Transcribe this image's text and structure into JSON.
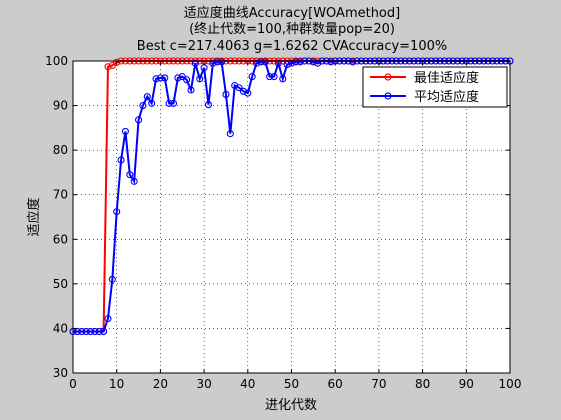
{
  "chart_data": {
    "type": "line",
    "title_lines": [
      "适应度曲线Accuracy[WOAmethod]",
      "(终止代数=100,种群数量pop=20)",
      "Best c=217.4063 g=1.6262 CVAccuracy=100%"
    ],
    "xlabel": "进化代数",
    "ylabel": "适应度",
    "xlim": [
      0,
      100
    ],
    "ylim": [
      30,
      100
    ],
    "xticks": [
      0,
      10,
      20,
      30,
      40,
      50,
      60,
      70,
      80,
      90,
      100
    ],
    "yticks": [
      30,
      40,
      50,
      60,
      70,
      80,
      90,
      100
    ],
    "grid": true,
    "legend_position": "top-right",
    "colors": {
      "best": "#ff0000",
      "avg": "#0000ff",
      "background": "#cccccc",
      "axes_bg": "#ffffff"
    },
    "x": [
      0,
      1,
      2,
      3,
      4,
      5,
      6,
      7,
      8,
      9,
      10,
      11,
      12,
      13,
      14,
      15,
      16,
      17,
      18,
      19,
      20,
      21,
      22,
      23,
      24,
      25,
      26,
      27,
      28,
      29,
      30,
      31,
      32,
      33,
      34,
      35,
      36,
      37,
      38,
      39,
      40,
      41,
      42,
      43,
      44,
      45,
      46,
      47,
      48,
      49,
      50,
      51,
      52,
      53,
      54,
      55,
      56,
      57,
      58,
      59,
      60,
      61,
      62,
      63,
      64,
      65,
      66,
      67,
      68,
      69,
      70,
      71,
      72,
      73,
      74,
      75,
      76,
      77,
      78,
      79,
      80,
      81,
      82,
      83,
      84,
      85,
      86,
      87,
      88,
      89,
      90,
      91,
      92,
      93,
      94,
      95,
      96,
      97,
      98,
      99,
      100
    ],
    "series": [
      {
        "name": "最佳适应度",
        "values": [
          39.3,
          39.3,
          39.3,
          39.3,
          39.3,
          39.3,
          39.3,
          39.3,
          98.7,
          99.0,
          99.7,
          100,
          100,
          100,
          100,
          100,
          100,
          100,
          100,
          100,
          100,
          100,
          100,
          100,
          100,
          100,
          100,
          100,
          100,
          100,
          100,
          100,
          100,
          100,
          100,
          100,
          100,
          100,
          100,
          100,
          100,
          100,
          100,
          100,
          100,
          100,
          100,
          100,
          100,
          100,
          100,
          100,
          100,
          100,
          100,
          100,
          100,
          100,
          100,
          100,
          100,
          100,
          100,
          100,
          100,
          100,
          100,
          100,
          100,
          100,
          100,
          100,
          100,
          100,
          100,
          100,
          100,
          100,
          100,
          100,
          100,
          100,
          100,
          100,
          100,
          100,
          100,
          100,
          100,
          100,
          100,
          100,
          100,
          100,
          100,
          100,
          100,
          100,
          100,
          100,
          100
        ]
      },
      {
        "name": "平均适应度",
        "values": [
          39.3,
          39.3,
          39.3,
          39.3,
          39.3,
          39.3,
          39.3,
          39.3,
          42.2,
          51.0,
          66.2,
          77.8,
          84.2,
          74.5,
          73.0,
          86.8,
          90.0,
          92.0,
          90.5,
          96.0,
          96.2,
          96.2,
          90.5,
          90.5,
          96.2,
          96.5,
          95.8,
          93.5,
          99.5,
          96.0,
          98.5,
          90.2,
          99.5,
          99.8,
          99.8,
          92.5,
          83.7,
          94.5,
          94.0,
          93.2,
          92.8,
          96.5,
          99.5,
          99.8,
          99.8,
          96.5,
          96.5,
          99.5,
          96.0,
          99.2,
          99.5,
          99.8,
          99.8,
          100,
          100,
          99.8,
          99.5,
          100,
          100,
          99.8,
          100,
          100,
          100,
          100,
          99.8,
          100,
          100,
          100,
          100,
          100,
          100,
          100,
          100,
          100,
          100,
          100,
          100,
          100,
          100,
          100,
          100,
          100,
          100,
          100,
          100,
          100,
          100,
          100,
          100,
          100,
          100,
          100,
          100,
          100,
          100,
          100,
          100,
          100,
          100,
          100,
          100
        ]
      }
    ]
  }
}
